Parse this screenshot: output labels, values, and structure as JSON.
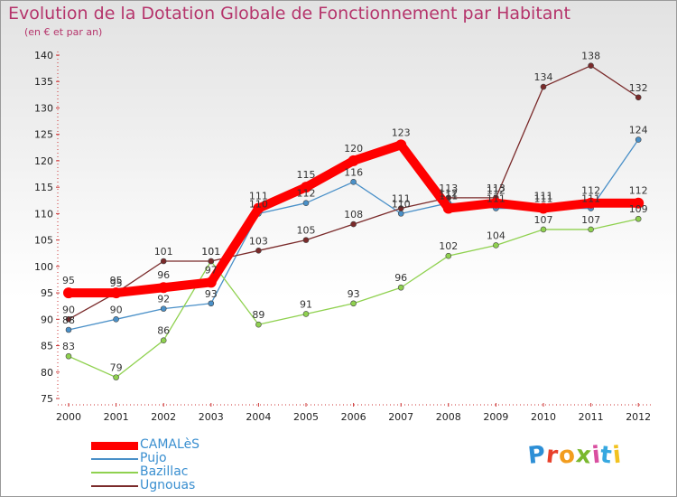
{
  "header": {
    "title": "Evolution de la Dotation Globale de Fonctionnement par Habitant",
    "subtitle": "(en € et par an)"
  },
  "brand": {
    "name": "Proxiti",
    "letter_colors": [
      "#2d8fd6",
      "#e8402a",
      "#f29d1f",
      "#7ab82e",
      "#d94fa0",
      "#36a8e0",
      "#f2c21f"
    ]
  },
  "chart_data": {
    "type": "line",
    "title": "Evolution de la Dotation Globale de Fonctionnement par Habitant",
    "subtitle": "(en € et par an)",
    "xlabel": "",
    "ylabel": "",
    "x": [
      "2000",
      "2001",
      "2002",
      "2003",
      "2004",
      "2005",
      "2006",
      "2007",
      "2008",
      "2009",
      "2010",
      "2011",
      "2012"
    ],
    "ylim": [
      75,
      140
    ],
    "yticks": [
      75,
      80,
      85,
      90,
      95,
      100,
      105,
      110,
      115,
      120,
      125,
      130,
      135,
      140
    ],
    "grid": false,
    "legend_position": "bottom-left",
    "series": [
      {
        "name": "CAMALèS",
        "color": "#ff0000",
        "values": [
          95,
          95,
          96,
          97,
          111,
          115,
          120,
          123,
          111,
          112,
          111,
          112,
          112
        ]
      },
      {
        "name": "Pujo",
        "color": "#4a90c8",
        "values": [
          88,
          90,
          92,
          93,
          110,
          112,
          116,
          110,
          112,
          111,
          111,
          111,
          124
        ]
      },
      {
        "name": "Bazillac",
        "color": "#8fd14f",
        "values": [
          83,
          79,
          86,
          101,
          89,
          91,
          93,
          96,
          102,
          104,
          107,
          107,
          109
        ]
      },
      {
        "name": "Ugnouas",
        "color": "#7a2a2a",
        "values": [
          90,
          95,
          101,
          101,
          103,
          105,
          108,
          111,
          113,
          113,
          134,
          138,
          132
        ]
      }
    ]
  }
}
